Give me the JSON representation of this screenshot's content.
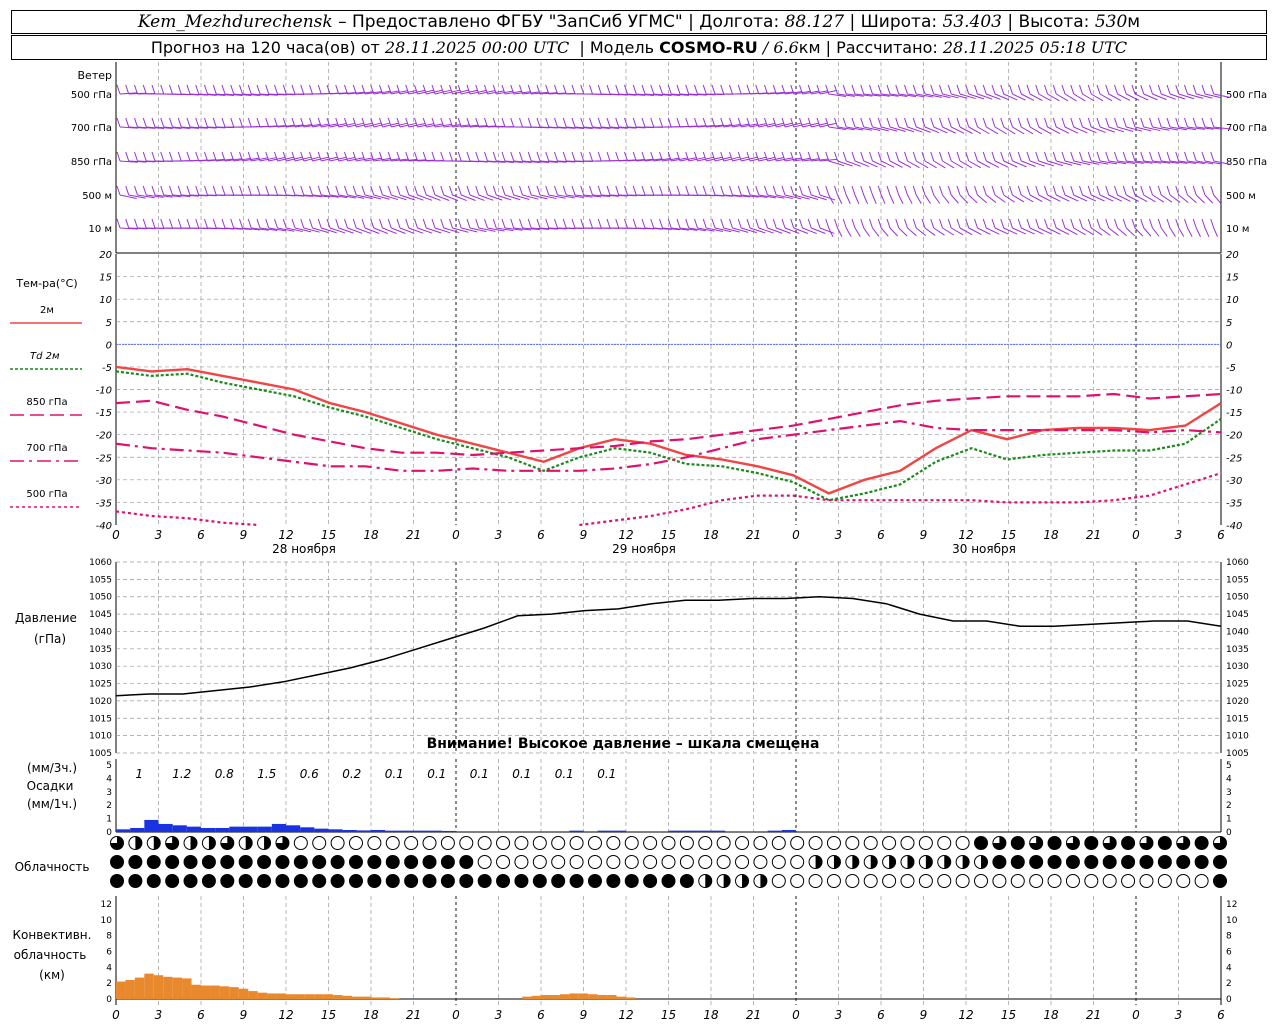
{
  "header": {
    "station": "Kem_Mezhdurechensk",
    "provided_by": "– Предоставлено ФГБУ \"ЗапСиб УГМС\"",
    "lon_label": "| Долгота:",
    "lon": "88.127",
    "lat_label": "| Широта:",
    "lat": "53.403",
    "alt_label": "| Высота:",
    "alt": "530",
    "alt_unit": "м",
    "forecast_label": "Прогноз на 120 часа(ов) от",
    "forecast_from": "28.11.2025 00:00 UTC",
    "model_label": "| Модель",
    "model": "COSMO-RU",
    "res_sep": "/",
    "res": "6.6",
    "res_unit": "км",
    "calc_label": "| Рассчитано:",
    "calc_time": "28.11.2025 05:18 UTC"
  },
  "colors": {
    "wind": "#9a30d6",
    "t2m": "#f04545",
    "td2m": "#1a8a1a",
    "t850": "#e0106f",
    "t700": "#e0106f",
    "t500": "#e0106f",
    "pressure": "#000000",
    "precip": "#1a33e0",
    "convective": "#e8892d",
    "grid": "#9a9a9a",
    "zero_line": "#3a55ff"
  },
  "chart_data": [
    {
      "type": "wind_barbs",
      "title": "Ветер",
      "levels": [
        "500 гПа",
        "700 гПа",
        "850 гПа",
        "500 м",
        "10 м"
      ]
    },
    {
      "type": "line",
      "ylabel": "Тем-ра(°С)",
      "ylim": [
        -40,
        20
      ],
      "yticks": [
        20,
        15,
        10,
        5,
        0,
        -5,
        -10,
        -15,
        -20,
        -25,
        -30,
        -35,
        -40
      ],
      "x_start_hour": 0,
      "x_step_hours": 3,
      "series": [
        {
          "name": "2м",
          "style": "solid",
          "values": [
            -5,
            -6,
            -5.5,
            -7,
            -8.5,
            -10,
            -13,
            -15,
            -17.5,
            -20,
            -22,
            -24,
            -26,
            -23,
            -21,
            -22,
            -24.5,
            -25.5,
            -27,
            -29,
            -33,
            -30,
            -28,
            -23,
            -19,
            -21,
            -19,
            -18.5,
            -18.5,
            -19,
            -18,
            -13
          ]
        },
        {
          "name": "Td 2м",
          "style": "dotted",
          "values": [
            -6,
            -7,
            -6.5,
            -8.5,
            -10,
            -11.5,
            -14,
            -16,
            -18.5,
            -21,
            -23,
            -25,
            -28,
            -25,
            -23,
            -24,
            -26.5,
            -27,
            -28.5,
            -30.5,
            -34.5,
            -33,
            -31,
            -26,
            -23,
            -25.5,
            -24.5,
            -24,
            -23.5,
            -23.5,
            -22,
            -16.5
          ]
        },
        {
          "name": "850 гПа",
          "style": "dashed",
          "values": [
            -13,
            -12.5,
            -14.5,
            -16,
            -18,
            -20,
            -21.5,
            -23,
            -24,
            -24,
            -24.5,
            -24,
            -23.5,
            -23,
            -22.5,
            -21.5,
            -21,
            -20,
            -19,
            -18,
            -16.5,
            -15,
            -13.5,
            -12.5,
            -12,
            -11.5,
            -11.5,
            -11.5,
            -11,
            -12,
            -11.5,
            -11
          ]
        },
        {
          "name": "700 гПа",
          "style": "dashdot",
          "values": [
            -22,
            -23,
            -23.5,
            -24,
            -25,
            -26,
            -27,
            -27,
            -28,
            -28,
            -27.5,
            -28,
            -28,
            -28,
            -27.5,
            -26.5,
            -25,
            -23,
            -21,
            -20,
            -19,
            -18,
            -17,
            -18.5,
            -19,
            -19,
            -19,
            -19,
            -19,
            -19.5,
            -19,
            -19.5
          ]
        },
        {
          "name": "500 гПа",
          "style": "dotted-thick",
          "values": [
            -37,
            -38,
            -38.5,
            -39.5,
            -40,
            null,
            null,
            null,
            null,
            null,
            null,
            null,
            null,
            -40,
            -39,
            -38,
            -36.5,
            -34.5,
            -33.5,
            -33.5,
            -34.5,
            -34.5,
            -34.5,
            -34.5,
            -34.5,
            -35,
            -35,
            -35,
            -34.5,
            -33.5,
            -31,
            -28.5
          ]
        }
      ],
      "xticks": [
        "0",
        "3",
        "6",
        "9",
        "12",
        "15",
        "18",
        "21",
        "0",
        "3",
        "6",
        "9",
        "12",
        "15",
        "18",
        "21",
        "0",
        "3",
        "6",
        "9",
        "12",
        "15",
        "18",
        "21",
        "0",
        "3",
        "6"
      ],
      "day_labels": [
        "28 ноября",
        "29 ноября",
        "30 ноября"
      ]
    },
    {
      "type": "line",
      "ylabel": "Давление",
      "yunit": "(гПа)",
      "ylim": [
        1005,
        1060
      ],
      "yticks": [
        1060,
        1055,
        1050,
        1045,
        1040,
        1035,
        1030,
        1025,
        1020,
        1015,
        1010,
        1005
      ],
      "x_step_hours": 3,
      "series": [
        {
          "name": "pressure",
          "values": [
            1021.5,
            1022,
            1022,
            1023,
            1024,
            1025.5,
            1027.5,
            1029.5,
            1032,
            1035,
            1038,
            1041,
            1044.5,
            1045,
            1046,
            1046.5,
            1048,
            1049,
            1049,
            1049.5,
            1049.5,
            1050,
            1049.5,
            1048,
            1045,
            1043,
            1043,
            1041.5,
            1041.5,
            1042,
            1042.5,
            1043,
            1043,
            1041.5
          ]
        }
      ],
      "annotation": "Внимание! Высокое давление – шкала смещена"
    },
    {
      "type": "bar",
      "ylabel": "Осадки",
      "unit_top": "(мм/3ч.)",
      "unit_bottom": "(мм/1ч.)",
      "ylim": [
        0,
        5
      ],
      "yticks": [
        5,
        4,
        3,
        2,
        1,
        0
      ],
      "totals_3h": [
        "1",
        "1.2",
        "0.8",
        "1.5",
        "0.6",
        "0.2",
        "0.1",
        "0.1",
        "0.1",
        "0.1",
        "0.1",
        "0.1"
      ],
      "hourly": [
        0.2,
        0.3,
        0.9,
        0.6,
        0.5,
        0.4,
        0.3,
        0.3,
        0.4,
        0.4,
        0.4,
        0.6,
        0.5,
        0.35,
        0.25,
        0.2,
        0.15,
        0.12,
        0.15,
        0.1,
        0.1,
        0.1,
        0.1,
        0.08,
        0.05,
        0.05,
        0.05,
        0.05,
        0.05,
        0.05,
        0.05,
        0.05,
        0.1,
        0.05,
        0.1,
        0.1,
        0.05,
        0.05,
        0.05,
        0.1,
        0.1,
        0.1,
        0.1,
        0.05,
        0.05,
        0.05,
        0.1,
        0.15,
        0,
        0
      ]
    },
    {
      "type": "cloud_symbols",
      "ylabel": "Облачность",
      "rows": [
        "3333123456111000000000000000000000000000000000000000000000000000000000000000000000000000000000000000000000000000000000000000000000000000000000000000000000000000000000000000001111444444444444444444444444444444444444444444440000000000000000000000000000000000000000000000000000000000000000000000000000000000000000000000000000000",
        "",
        ""
      ]
    },
    {
      "type": "bar",
      "ylabel": "Конвективн.",
      "ylabel2": "облачность",
      "yunit": "(км)",
      "ylim": [
        0,
        13
      ],
      "yticks": [
        12,
        10,
        8,
        6,
        4,
        2,
        0
      ],
      "values": [
        2.2,
        2.4,
        2.7,
        3.2,
        3,
        2.8,
        2.7,
        2.6,
        1.8,
        1.7,
        1.7,
        1.6,
        1.5,
        1.3,
        1,
        0.8,
        0.7,
        0.7,
        0.6,
        0.6,
        0.6,
        0.6,
        0.6,
        0.5,
        0.4,
        0.3,
        0.3,
        0.2,
        0.2,
        0.1,
        0,
        0,
        0,
        0,
        0,
        0,
        0,
        0,
        0,
        0,
        0,
        0,
        0,
        0.3,
        0.4,
        0.5,
        0.5,
        0.6,
        0.7,
        0.7,
        0.6,
        0.5,
        0.5,
        0.3,
        0.2,
        0,
        0,
        0,
        0,
        0,
        0,
        0,
        0,
        0,
        0,
        0,
        0,
        0,
        0,
        0,
        0,
        0,
        0,
        0,
        0,
        0,
        0,
        0,
        0,
        0,
        0,
        0,
        0,
        0,
        0,
        0,
        0,
        0,
        0,
        0,
        0,
        0,
        0,
        0,
        0,
        0,
        0,
        0,
        0,
        0,
        0,
        0,
        0,
        0,
        0,
        0,
        0,
        0,
        0,
        0,
        0,
        0,
        0,
        0,
        0,
        0,
        0,
        0,
        0,
        0,
        0,
        0,
        0
      ]
    }
  ]
}
